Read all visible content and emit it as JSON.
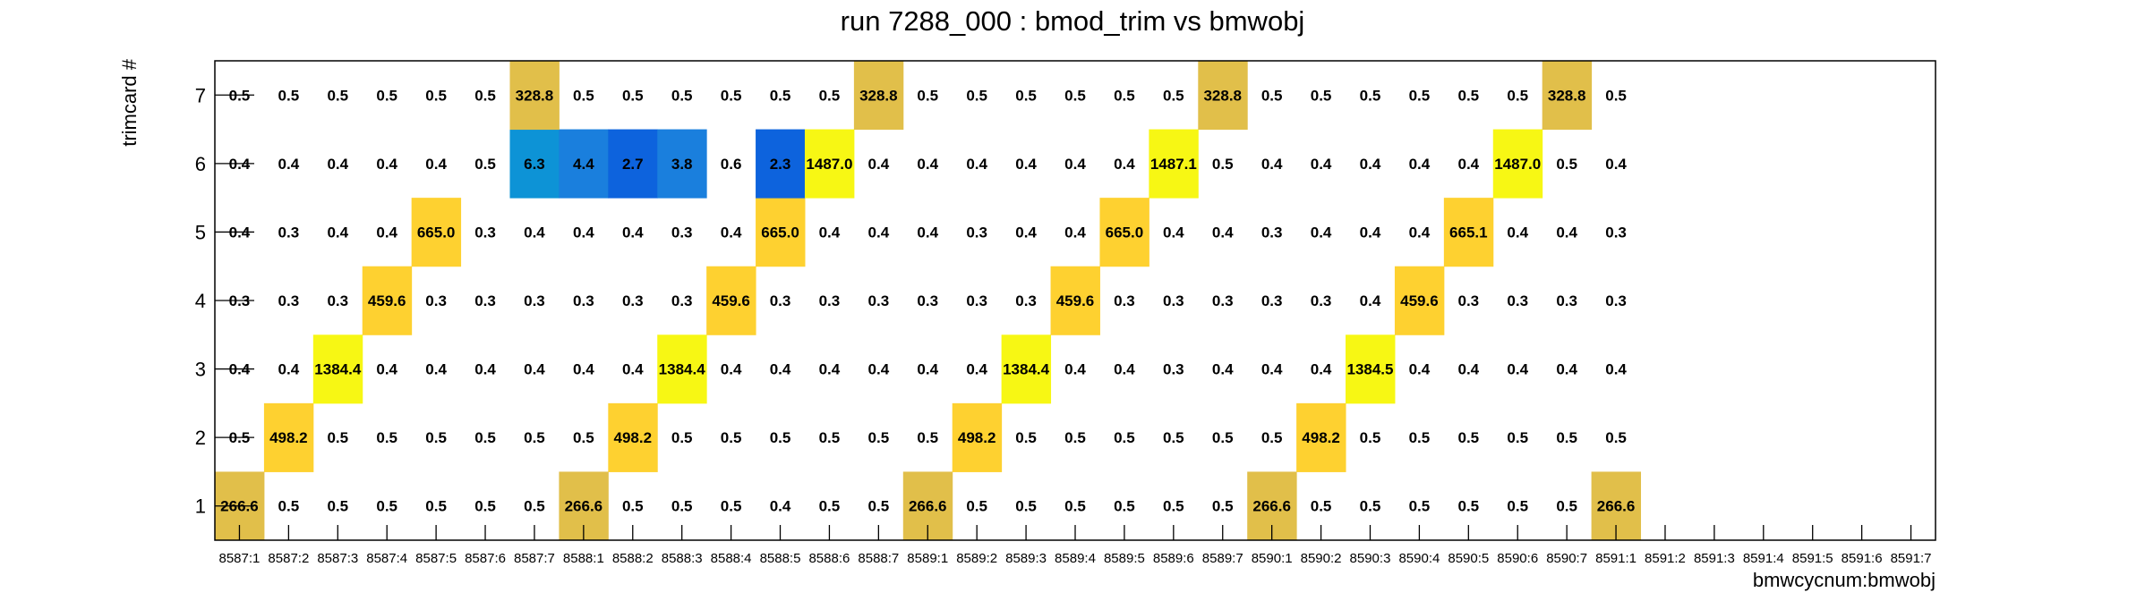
{
  "chart_data": {
    "type": "heatmap",
    "title": "run 7288_000 : bmod_trim vs bmwobj",
    "xlabel": "bmwcycnum:bmwobj",
    "ylabel": "trimcard #",
    "x_categories": [
      "8587:1",
      "8587:2",
      "8587:3",
      "8587:4",
      "8587:5",
      "8587:6",
      "8587:7",
      "8588:1",
      "8588:2",
      "8588:3",
      "8588:4",
      "8588:5",
      "8588:6",
      "8588:7",
      "8589:1",
      "8589:2",
      "8589:3",
      "8589:4",
      "8589:5",
      "8589:6",
      "8589:7",
      "8590:1",
      "8590:2",
      "8590:3",
      "8590:4",
      "8590:5",
      "8590:6",
      "8590:7",
      "8591:1",
      "8591:2",
      "8591:3",
      "8591:4",
      "8591:5",
      "8591:6",
      "8591:7"
    ],
    "y_categories": [
      "1",
      "2",
      "3",
      "4",
      "5",
      "6",
      "7"
    ],
    "values": [
      [
        "266.6",
        "0.5",
        "0.5",
        "0.5",
        "0.5",
        "0.5",
        "0.5",
        "266.6",
        "0.5",
        "0.5",
        "0.5",
        "0.4",
        "0.5",
        "0.5",
        "266.6",
        "0.5",
        "0.5",
        "0.5",
        "0.5",
        "0.5",
        "0.5",
        "266.6",
        "0.5",
        "0.5",
        "0.5",
        "0.5",
        "0.5",
        "0.5",
        "266.6",
        null,
        null,
        null,
        null,
        null,
        null
      ],
      [
        "0.5",
        "498.2",
        "0.5",
        "0.5",
        "0.5",
        "0.5",
        "0.5",
        "0.5",
        "498.2",
        "0.5",
        "0.5",
        "0.5",
        "0.5",
        "0.5",
        "0.5",
        "498.2",
        "0.5",
        "0.5",
        "0.5",
        "0.5",
        "0.5",
        "0.5",
        "498.2",
        "0.5",
        "0.5",
        "0.5",
        "0.5",
        "0.5",
        "0.5",
        null,
        null,
        null,
        null,
        null,
        null
      ],
      [
        "0.4",
        "0.4",
        "1384.4",
        "0.4",
        "0.4",
        "0.4",
        "0.4",
        "0.4",
        "0.4",
        "1384.4",
        "0.4",
        "0.4",
        "0.4",
        "0.4",
        "0.4",
        "0.4",
        "1384.4",
        "0.4",
        "0.4",
        "0.3",
        "0.4",
        "0.4",
        "0.4",
        "1384.5",
        "0.4",
        "0.4",
        "0.4",
        "0.4",
        "0.4",
        null,
        null,
        null,
        null,
        null,
        null
      ],
      [
        "0.3",
        "0.3",
        "0.3",
        "459.6",
        "0.3",
        "0.3",
        "0.3",
        "0.3",
        "0.3",
        "0.3",
        "459.6",
        "0.3",
        "0.3",
        "0.3",
        "0.3",
        "0.3",
        "0.3",
        "459.6",
        "0.3",
        "0.3",
        "0.3",
        "0.3",
        "0.3",
        "0.4",
        "459.6",
        "0.3",
        "0.3",
        "0.3",
        "0.3",
        null,
        null,
        null,
        null,
        null,
        null
      ],
      [
        "0.4",
        "0.3",
        "0.4",
        "0.4",
        "665.0",
        "0.3",
        "0.4",
        "0.4",
        "0.4",
        "0.3",
        "0.4",
        "665.0",
        "0.4",
        "0.4",
        "0.4",
        "0.3",
        "0.4",
        "0.4",
        "665.0",
        "0.4",
        "0.4",
        "0.3",
        "0.4",
        "0.4",
        "0.4",
        "665.1",
        "0.4",
        "0.4",
        "0.3",
        null,
        null,
        null,
        null,
        null,
        null
      ],
      [
        "0.4",
        "0.4",
        "0.4",
        "0.4",
        "0.4",
        "0.5",
        "6.3",
        "4.4",
        "2.7",
        "3.8",
        "0.6",
        "2.3",
        "1487.0",
        "0.4",
        "0.4",
        "0.4",
        "0.4",
        "0.4",
        "0.4",
        "1487.1",
        "0.5",
        "0.4",
        "0.4",
        "0.4",
        "0.4",
        "0.4",
        "1487.0",
        "0.5",
        "0.4",
        null,
        null,
        null,
        null,
        null,
        null
      ],
      [
        "0.5",
        "0.5",
        "0.5",
        "0.5",
        "0.5",
        "0.5",
        "328.8",
        "0.5",
        "0.5",
        "0.5",
        "0.5",
        "0.5",
        "0.5",
        "328.8",
        "0.5",
        "0.5",
        "0.5",
        "0.5",
        "0.5",
        "0.5",
        "328.8",
        "0.5",
        "0.5",
        "0.5",
        "0.5",
        "0.5",
        "0.5",
        "328.8",
        "0.5",
        null,
        null,
        null,
        null,
        null,
        null
      ]
    ],
    "palette": {
      "yellow": "#f7f714",
      "gold": "#fed130",
      "dark_gold": "#e1bf4a",
      "blue_light": "#0d93d6",
      "blue_mid": "#1a7fdd",
      "blue_dark": "#0d63dd"
    },
    "frame_color": "#000000",
    "background": "#ffffff"
  }
}
